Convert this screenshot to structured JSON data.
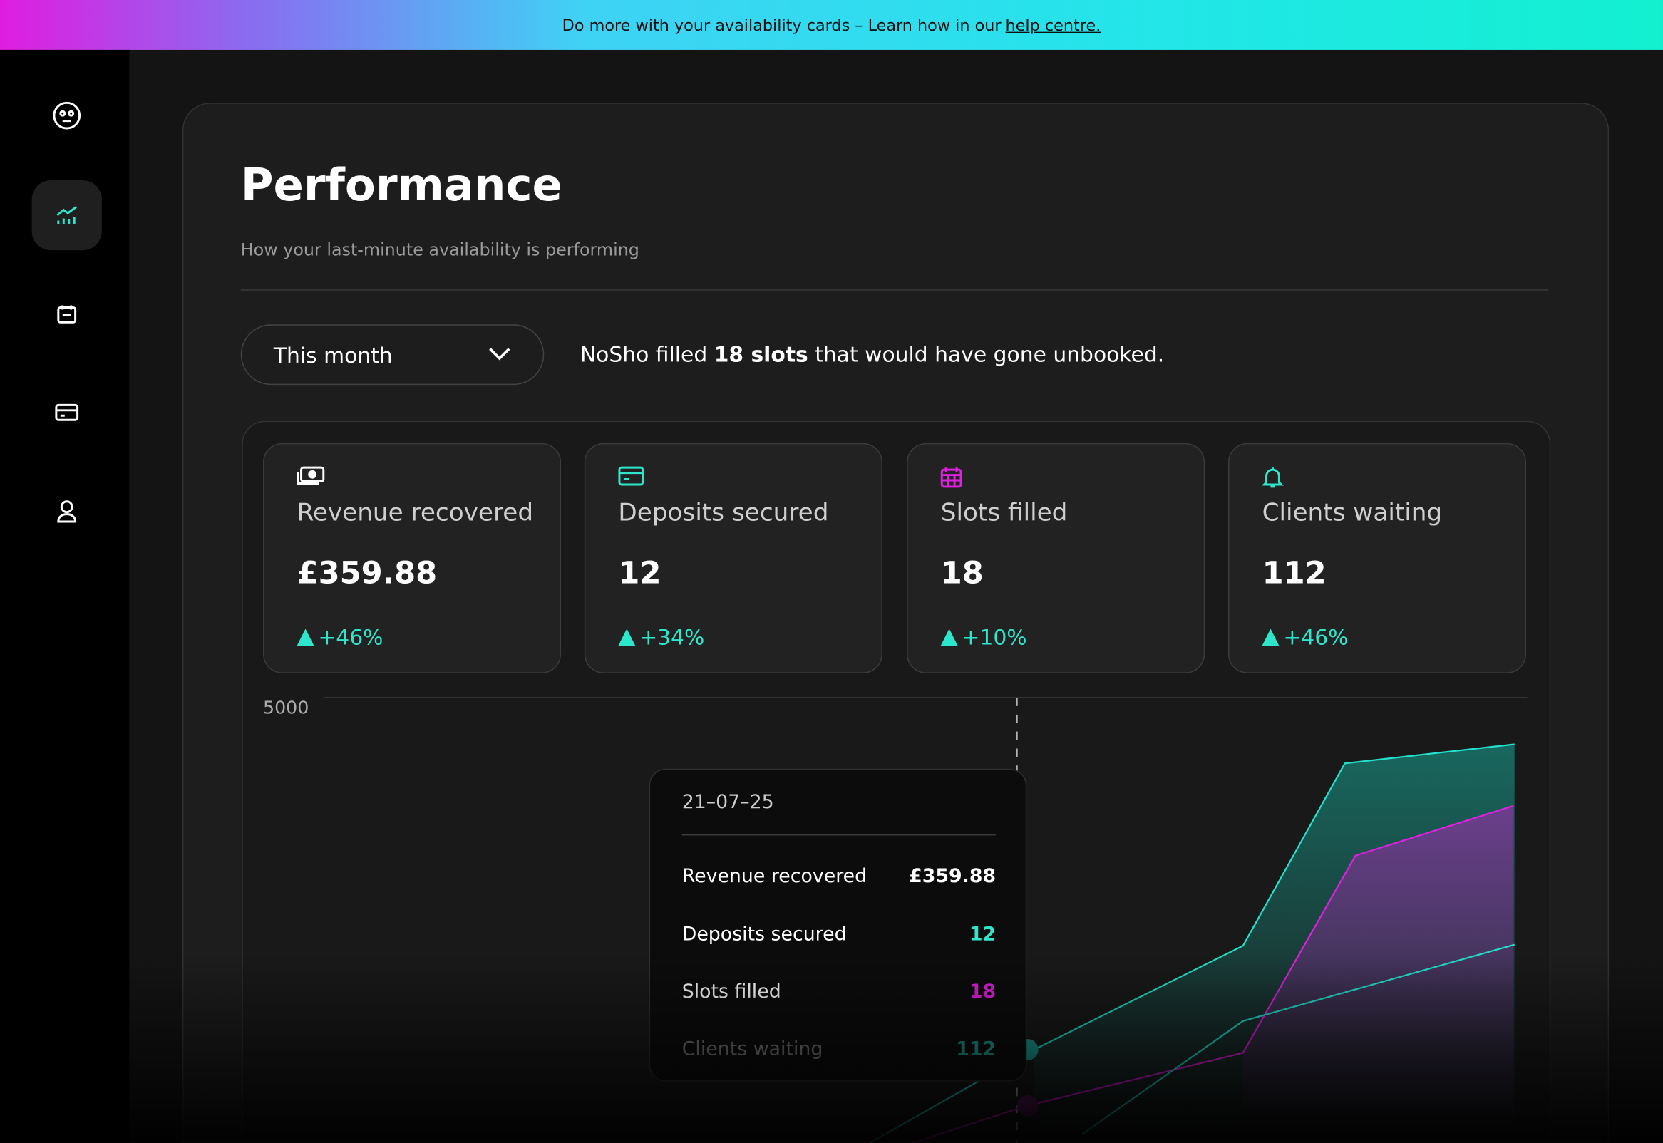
{
  "banner": {
    "text": "Do more with your availability cards – Learn how in our",
    "link": "help centre."
  },
  "header": {
    "title": "Performance",
    "subtitle": "How your last-minute availability is performing"
  },
  "filter": {
    "selected": "This month"
  },
  "summary": {
    "before": "NoSho filled",
    "highlight": "18 slots",
    "after": "that would have gone unbooked."
  },
  "cards": [
    {
      "label": "Revenue recovered",
      "value": "£359.88",
      "change": "+46%"
    },
    {
      "label": "Deposits secured",
      "value": "12",
      "change": "+34%"
    },
    {
      "label": "Slots filled",
      "value": "18",
      "change": "+10%"
    },
    {
      "label": "Clients waiting",
      "value": "112",
      "change": "+46%"
    }
  ],
  "chart": {
    "ytick": "5000"
  },
  "tooltip": {
    "date": "21–07–25",
    "rows": [
      {
        "label": "Revenue recovered",
        "value": "£359.88"
      },
      {
        "label": "Deposits secured",
        "value": "12"
      },
      {
        "label": "Slots filled",
        "value": "18"
      },
      {
        "label": "Clients waiting",
        "value": "112"
      }
    ]
  }
}
